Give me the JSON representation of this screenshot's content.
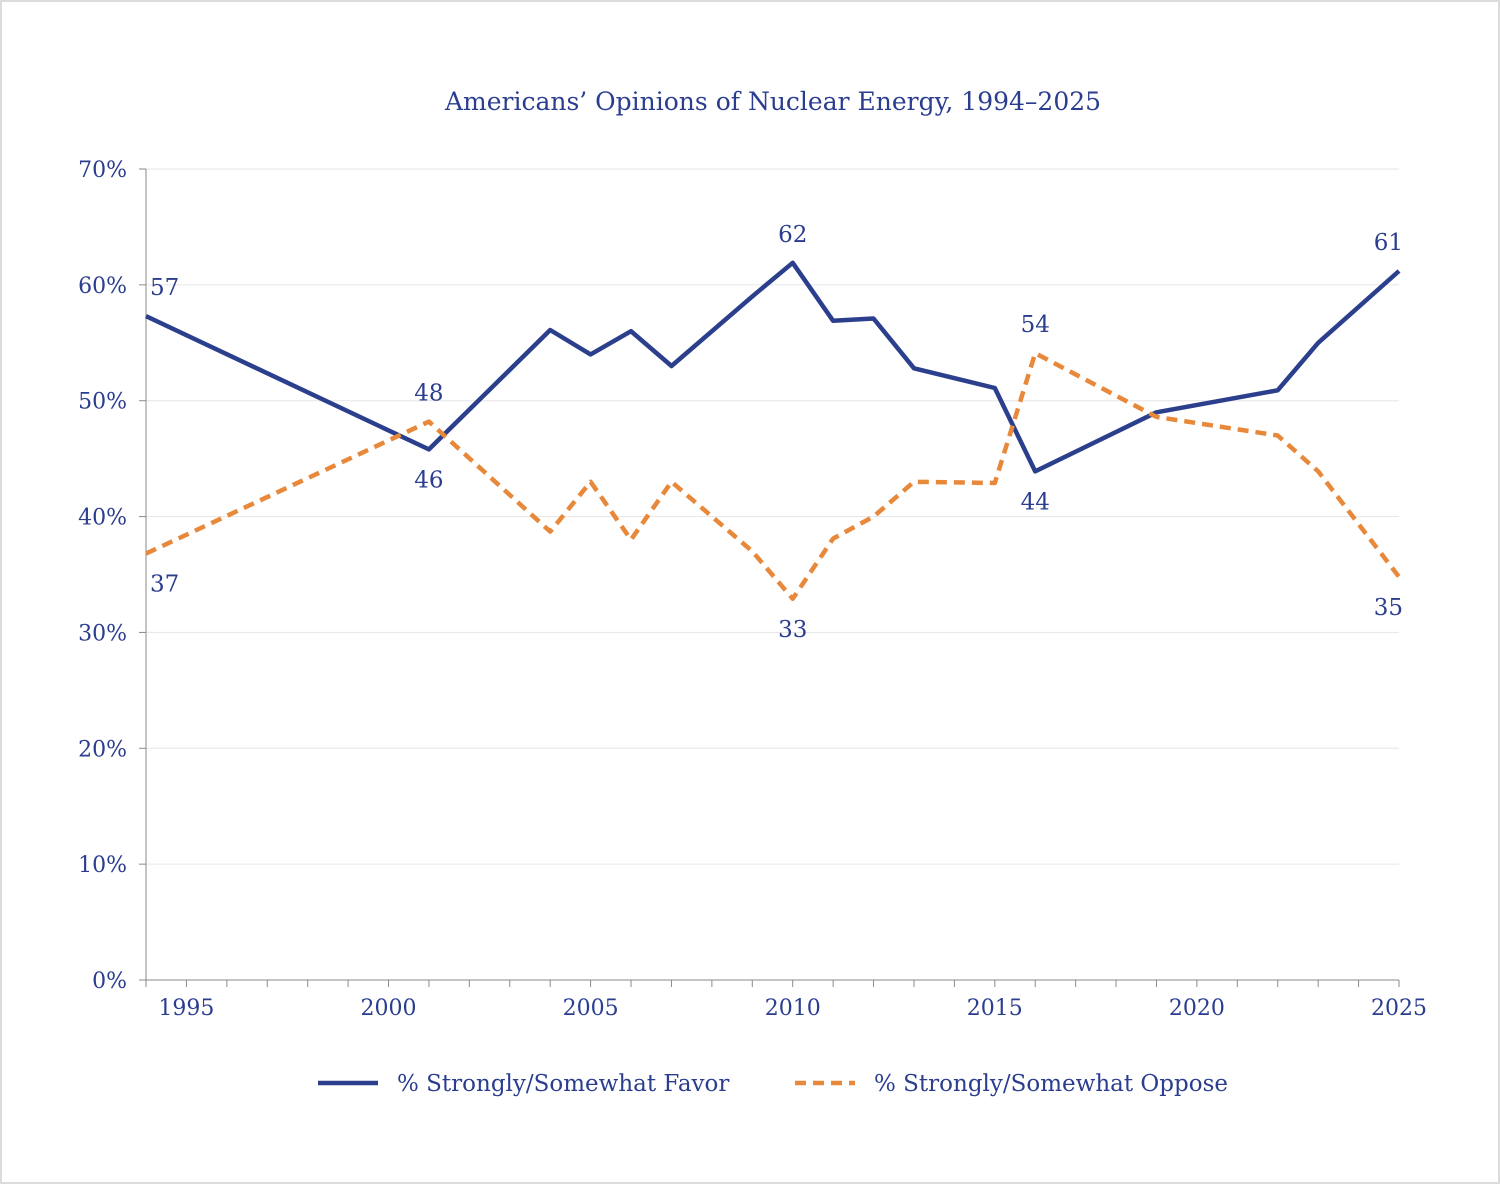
{
  "colors": {
    "text": "#2a3d8f",
    "favor": "#2b3f8c",
    "oppose": "#e8883a",
    "grid": "#e6e6e6",
    "axis": "#8a8a8a"
  },
  "chart_data": {
    "type": "line",
    "title": "Americans’ Opinions of Nuclear Energy, 1994–2025",
    "xlabel": "",
    "ylabel": "",
    "xlim": [
      1994,
      2025
    ],
    "ylim": [
      0,
      70
    ],
    "x_ticks": [
      1995,
      2000,
      2005,
      2010,
      2015,
      2020,
      2025
    ],
    "y_ticks": [
      0,
      10,
      20,
      30,
      40,
      50,
      60,
      70
    ],
    "y_tick_labels": [
      "0%",
      "10%",
      "20%",
      "30%",
      "40%",
      "50%",
      "60%",
      "70%"
    ],
    "grid": true,
    "legend_position": "bottom",
    "series": [
      {
        "name": "% Strongly/Somewhat Favor",
        "style": "solid",
        "x": [
          1994,
          2001,
          2004,
          2005,
          2006,
          2007,
          2009,
          2010,
          2011,
          2012,
          2013,
          2015,
          2016,
          2019,
          2022,
          2023,
          2025
        ],
        "values": [
          57.3,
          45.8,
          56.1,
          54.0,
          56.0,
          53.0,
          59.0,
          61.9,
          56.9,
          57.1,
          52.8,
          51.1,
          43.9,
          49.0,
          50.9,
          55.0,
          61.2
        ]
      },
      {
        "name": "% Strongly/Somewhat Oppose",
        "style": "dashed",
        "x": [
          1994,
          2001,
          2004,
          2005,
          2006,
          2007,
          2009,
          2010,
          2011,
          2012,
          2013,
          2015,
          2016,
          2019,
          2022,
          2023,
          2025
        ],
        "values": [
          36.8,
          48.2,
          38.7,
          43.0,
          38.0,
          43.0,
          37.0,
          32.9,
          38.1,
          40.0,
          43.0,
          42.9,
          54.1,
          48.6,
          47.0,
          43.9,
          34.8
        ]
      }
    ],
    "annotations": [
      {
        "series": 0,
        "x": 1994,
        "value": 57.3,
        "text": "57",
        "pos": "above"
      },
      {
        "series": 1,
        "x": 1994,
        "value": 36.8,
        "text": "37",
        "pos": "below"
      },
      {
        "series": 1,
        "x": 2001,
        "value": 48.2,
        "text": "48",
        "pos": "above"
      },
      {
        "series": 0,
        "x": 2001,
        "value": 45.8,
        "text": "46",
        "pos": "below"
      },
      {
        "series": 0,
        "x": 2010,
        "value": 61.9,
        "text": "62",
        "pos": "above"
      },
      {
        "series": 1,
        "x": 2010,
        "value": 32.9,
        "text": "33",
        "pos": "below"
      },
      {
        "series": 1,
        "x": 2016,
        "value": 54.1,
        "text": "54",
        "pos": "above"
      },
      {
        "series": 0,
        "x": 2016,
        "value": 43.9,
        "text": "44",
        "pos": "below"
      },
      {
        "series": 0,
        "x": 2025,
        "value": 61.2,
        "text": "61",
        "pos": "above"
      },
      {
        "series": 1,
        "x": 2025,
        "value": 34.8,
        "text": "35",
        "pos": "below"
      }
    ]
  }
}
